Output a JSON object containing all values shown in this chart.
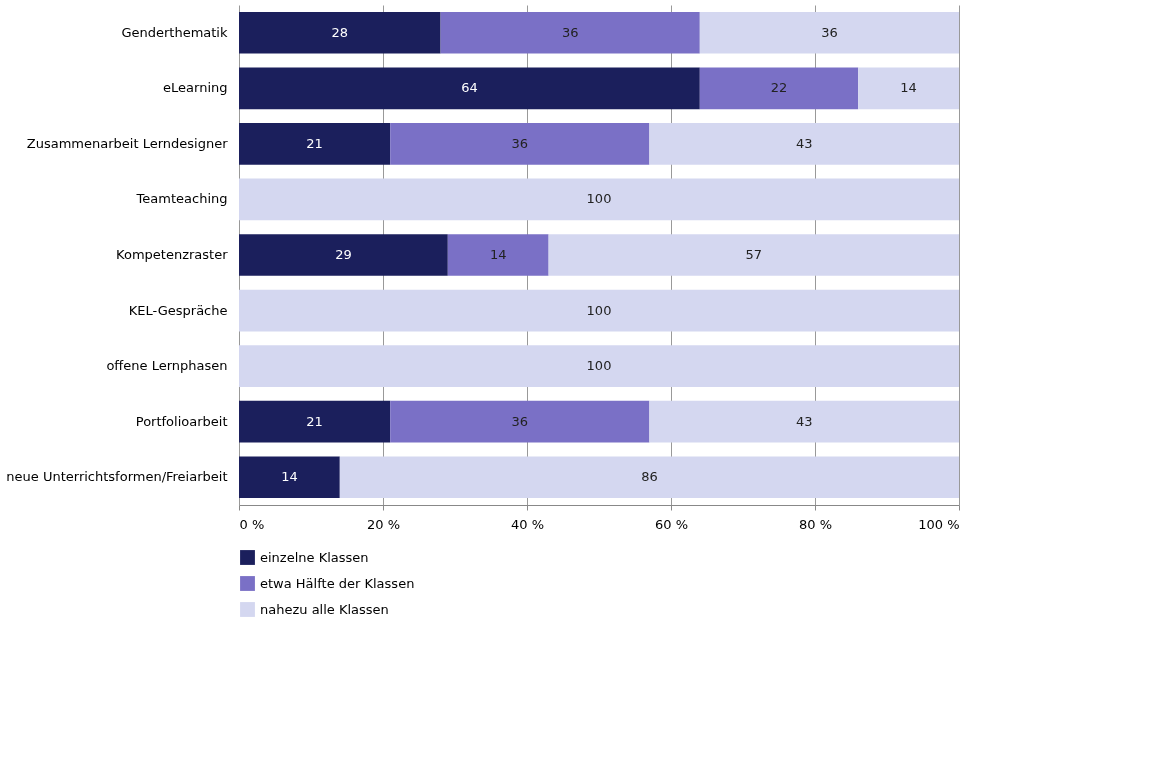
{
  "chart_data": {
    "type": "bar",
    "orientation": "horizontal",
    "stacked": true,
    "data_labels": true,
    "grid": "x",
    "legend": "bottom",
    "categories": [
      "Genderthematik",
      "eLearning",
      "Zusammenarbeit Lerndesigner",
      "Teamteaching",
      "Kompetenzraster",
      "KEL-Gespräche",
      "offene Lernphasen",
      "Portfolioarbeit",
      "neue Unterrichtsformen/Freiarbeit"
    ],
    "series": [
      {
        "name": "einzelne Klassen",
        "color": "#1b1f5c",
        "values": [
          28,
          64,
          21,
          null,
          29,
          null,
          null,
          21,
          14
        ]
      },
      {
        "name": "etwa Hälfte der Klassen",
        "color": "#7a70c6",
        "values": [
          36,
          22,
          36,
          null,
          14,
          null,
          null,
          36,
          null
        ]
      },
      {
        "name": "nahezu alle Klassen",
        "color": "#d4d7f0",
        "values": [
          36,
          14,
          43,
          100,
          57,
          100,
          100,
          43,
          86
        ]
      }
    ],
    "xlim": [
      0,
      100
    ],
    "xticks": [
      {
        "value": 0,
        "label": "0 %"
      },
      {
        "value": 20,
        "label": "20 %"
      },
      {
        "value": 40,
        "label": "40 %"
      },
      {
        "value": 60,
        "label": "60 %"
      },
      {
        "value": 80,
        "label": "80 %"
      },
      {
        "value": 100,
        "label": "100 %"
      }
    ]
  }
}
